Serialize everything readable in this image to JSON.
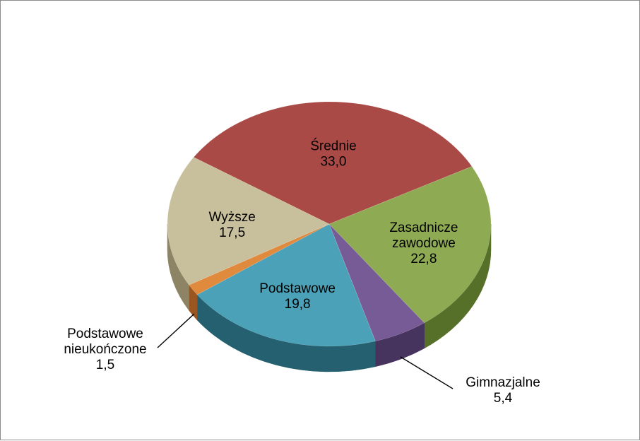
{
  "chart_data": {
    "type": "pie",
    "style": "3d",
    "title": "",
    "legend": "none",
    "slices": [
      {
        "label": [
          "Średnie"
        ],
        "value": "33,0",
        "share": 33.0,
        "color": "#aa4a46",
        "side_color": "#6e2b28",
        "label_pos": "inside"
      },
      {
        "label": [
          "Zasadnicze",
          "zawodowe"
        ],
        "value": "22,8",
        "share": 22.8,
        "color": "#8eaa52",
        "side_color": "#56702a",
        "label_pos": "inside"
      },
      {
        "label": [
          "Gimnazjalne"
        ],
        "value": "5,4",
        "share": 5.4,
        "color": "#775b97",
        "side_color": "#46335e",
        "label_pos": "outside"
      },
      {
        "label": [
          "Podstawowe"
        ],
        "value": "19,8",
        "share": 19.8,
        "color": "#4aa1b8",
        "side_color": "#24606f",
        "label_pos": "inside"
      },
      {
        "label": [
          "Podstawowe",
          "nieukończone"
        ],
        "value": "1,5",
        "share": 1.5,
        "color": "#e08a3e",
        "side_color": "#9a5620",
        "label_pos": "outside"
      },
      {
        "label": [
          "Wyższe"
        ],
        "value": "17,5",
        "share": 17.5,
        "color": "#c8c09c",
        "side_color": "#8c8464",
        "label_pos": "inside"
      }
    ]
  }
}
